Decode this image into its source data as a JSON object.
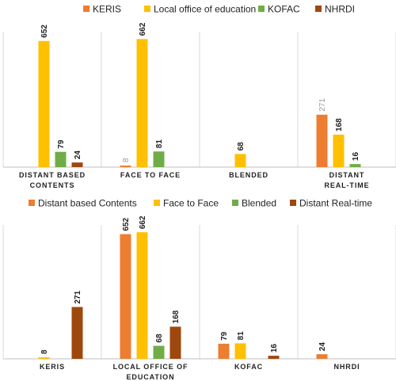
{
  "colors": {
    "orange": "#ED7D31",
    "gold": "#FFC000",
    "green": "#70AD47",
    "brown": "#9E480E",
    "grid": "#d9d9d9",
    "baseline": "#bfbfbf"
  },
  "chart_data": [
    {
      "type": "bar",
      "legend_position": "top",
      "grid": false,
      "ylim": [
        0,
        700
      ],
      "categories": [
        "DISTANT BASED CONTENTS",
        "FACE TO FACE",
        "BLENDED",
        "DISTANT REAL-TIME"
      ],
      "series": [
        {
          "name": "KERIS",
          "color": "orange",
          "values": [
            null,
            8,
            null,
            271
          ]
        },
        {
          "name": "Local office of education",
          "color": "gold",
          "values": [
            652,
            662,
            68,
            168
          ]
        },
        {
          "name": "KOFAC",
          "color": "green",
          "values": [
            79,
            81,
            null,
            16
          ]
        },
        {
          "name": "NHRDI",
          "color": "brown",
          "values": [
            24,
            null,
            null,
            null
          ]
        }
      ]
    },
    {
      "type": "bar",
      "legend_position": "top",
      "grid": false,
      "ylim": [
        0,
        700
      ],
      "categories": [
        "KERIS",
        "LOCAL OFFICE OF EDUCATION",
        "KOFAC",
        "NHRDI"
      ],
      "series": [
        {
          "name": "Distant based Contents",
          "color": "orange",
          "values": [
            null,
            652,
            79,
            24
          ]
        },
        {
          "name": "Face to Face",
          "color": "gold",
          "values": [
            8,
            662,
            81,
            null
          ]
        },
        {
          "name": "Blended",
          "color": "green",
          "values": [
            null,
            68,
            null,
            null
          ]
        },
        {
          "name": "Distant Real-time",
          "color": "brown",
          "values": [
            271,
            168,
            16,
            null
          ]
        }
      ]
    }
  ]
}
